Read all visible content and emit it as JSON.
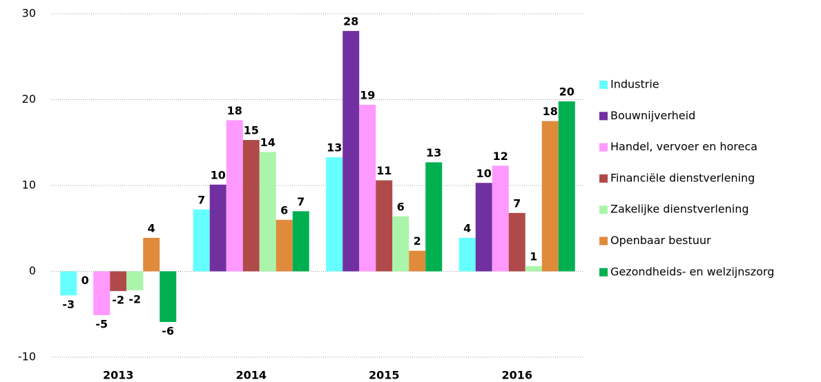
{
  "chart_data": {
    "type": "bar",
    "categories": [
      "2013",
      "2014",
      "2015",
      "2016"
    ],
    "series": [
      {
        "name": "Industrie",
        "color": "#66ffff",
        "label_color": "#4ff0f0",
        "values": [
          -2.8,
          7.2,
          13.3,
          3.9
        ],
        "value_labels": [
          "-3",
          "7",
          "13",
          "4"
        ]
      },
      {
        "name": "Bouwnijverheid",
        "color": "#7030a0",
        "label_color": "#7030a0",
        "values": [
          0,
          10.1,
          28.0,
          10.3
        ],
        "value_labels": [
          "0",
          "10",
          "28",
          "10"
        ]
      },
      {
        "name": "Handel, vervoer en horeca",
        "color": "#ff99ff",
        "label_color": "#ff00ff",
        "values": [
          -5.1,
          17.6,
          19.4,
          12.3
        ],
        "value_labels": [
          "-5",
          "18",
          "19",
          "12"
        ]
      },
      {
        "name": "Financiële dienstverlening",
        "color": "#b04a4a",
        "label_color": "#c00000",
        "values": [
          -2.3,
          15.3,
          10.6,
          6.8
        ],
        "value_labels": [
          "-2",
          "15",
          "11",
          "7"
        ]
      },
      {
        "name": "Zakelijke dienstverlening",
        "color": "#aaf5aa",
        "label_color": "#006600",
        "values": [
          -2.2,
          13.9,
          6.4,
          0.6
        ],
        "value_labels": [
          "-2",
          "14",
          "6",
          "1"
        ]
      },
      {
        "name": "Openbaar bestuur",
        "color": "#e08a3c",
        "label_color": "#e07b22",
        "values": [
          3.9,
          6.0,
          2.4,
          17.5
        ],
        "value_labels": [
          "4",
          "6",
          "2",
          "18"
        ]
      },
      {
        "name": "Gezondheids- en welzijnszorg",
        "color": "#00b050",
        "label_color": "#00b050",
        "values": [
          -5.9,
          7.0,
          12.7,
          19.8
        ],
        "value_labels": [
          "-6",
          "7",
          "13",
          "20"
        ]
      }
    ],
    "ylim": [
      -10,
      30
    ],
    "yticks": [
      -10,
      0,
      10,
      20,
      30
    ],
    "grid": true,
    "legend": "right"
  }
}
